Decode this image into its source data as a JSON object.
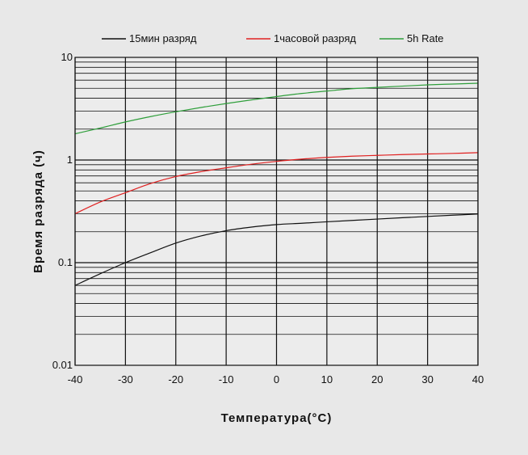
{
  "chart_data": {
    "type": "line",
    "title": "",
    "xlabel": "Температура(°C)",
    "ylabel": "Время разряда (ч)",
    "x_scale": "linear",
    "y_scale": "log",
    "xlim": [
      -40,
      40
    ],
    "ylim": [
      0.01,
      10
    ],
    "grid": true,
    "legend_position": "top",
    "x_ticks": [
      -40,
      -30,
      -20,
      -10,
      0,
      10,
      20,
      30,
      40
    ],
    "x_tick_labels": [
      "-40",
      "-30",
      "-20",
      "-10",
      "0",
      "10",
      "20",
      "30",
      "40"
    ],
    "y_tick_labels": [
      {
        "value": 0.01,
        "label": "0.01"
      },
      {
        "value": 0.1,
        "label": "0.1"
      },
      {
        "value": 1,
        "label": "1"
      },
      {
        "value": 10,
        "label": "10"
      }
    ],
    "x": [
      -40,
      -35,
      -30,
      -25,
      -20,
      -15,
      -10,
      -5,
      0,
      5,
      10,
      15,
      20,
      25,
      30,
      35,
      40
    ],
    "series": [
      {
        "name": "15мин разряд",
        "color": "#111111",
        "values": [
          0.06,
          0.078,
          0.1,
          0.125,
          0.155,
          0.182,
          0.205,
          0.222,
          0.235,
          0.242,
          0.25,
          0.258,
          0.266,
          0.274,
          0.282,
          0.29,
          0.298
        ]
      },
      {
        "name": "1часовой разряд",
        "color": "#e02020",
        "values": [
          0.3,
          0.39,
          0.48,
          0.59,
          0.69,
          0.77,
          0.84,
          0.91,
          0.97,
          1.02,
          1.06,
          1.09,
          1.11,
          1.13,
          1.145,
          1.16,
          1.18
        ]
      },
      {
        "name": "5h Rate",
        "color": "#2e9e3a",
        "values": [
          1.8,
          2.05,
          2.35,
          2.65,
          2.95,
          3.25,
          3.55,
          3.85,
          4.15,
          4.45,
          4.7,
          4.95,
          5.1,
          5.25,
          5.4,
          5.5,
          5.6
        ]
      }
    ]
  }
}
